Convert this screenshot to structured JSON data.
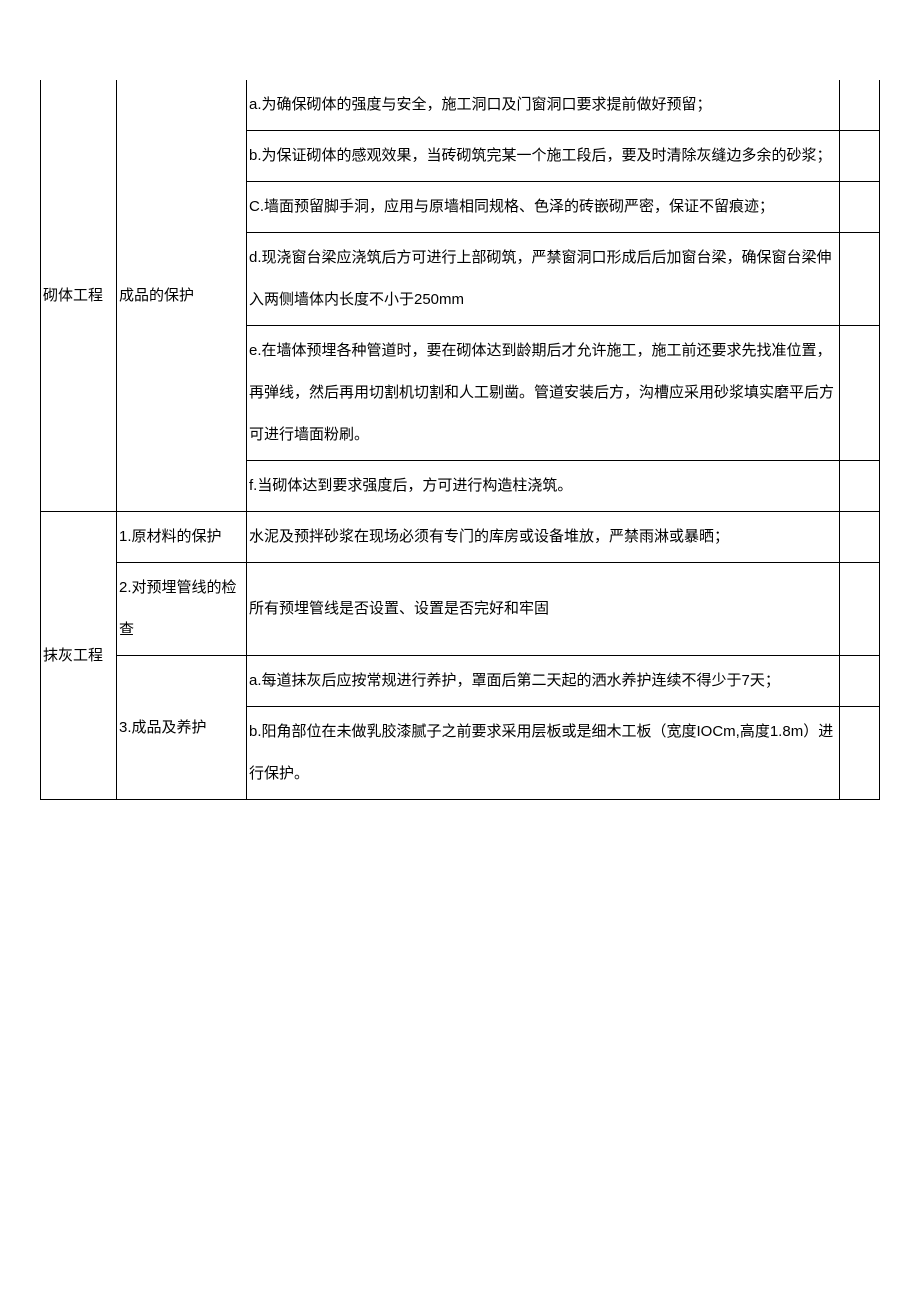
{
  "table": {
    "rows": [
      {
        "category": "砌体工程",
        "subcategory": "成品的保护",
        "items": [
          "a.为确保砌体的强度与安全，施工洞口及门窗洞口要求提前做好预留；",
          "b.为保证砌体的感观效果，当砖砌筑完某一个施工段后，要及时清除灰缝边多余的砂浆；",
          "C.墙面预留脚手洞，应用与原墙相同规格、色泽的砖嵌砌严密，保证不留痕迹；",
          "d.现浇窗台梁应浇筑后方可进行上部砌筑，严禁窗洞口形成后后加窗台梁，确保窗台梁伸入两侧墙体内长度不小于250mm",
          "e.在墙体预埋各种管道时，要在砌体达到龄期后才允许施工，施工前还要求先找准位置，再弹线，然后再用切割机切割和人工剔凿。管道安装后方，沟槽应采用砂浆填实磨平后方可进行墙面粉刷。",
          "f.当砌体达到要求强度后，方可进行构造柱浇筑。"
        ]
      },
      {
        "category": "抹灰工程",
        "subgroups": [
          {
            "subcategory": "1.原材料的保护",
            "items": [
              "水泥及预拌砂浆在现场必须有专门的库房或设备堆放，严禁雨淋或暴晒；"
            ]
          },
          {
            "subcategory": "2.对预埋管线的检查",
            "items": [
              "所有预埋管线是否设置、设置是否完好和牢固"
            ]
          },
          {
            "subcategory": "3.成品及养护",
            "items": [
              "a.每道抹灰后应按常规进行养护，罩面后第二天起的洒水养护连续不得少于7天；",
              "b.阳角部位在未做乳胶漆腻子之前要求采用层板或是细木工板（宽度IOCm,高度1.8m）进行保护。"
            ]
          }
        ]
      }
    ]
  }
}
